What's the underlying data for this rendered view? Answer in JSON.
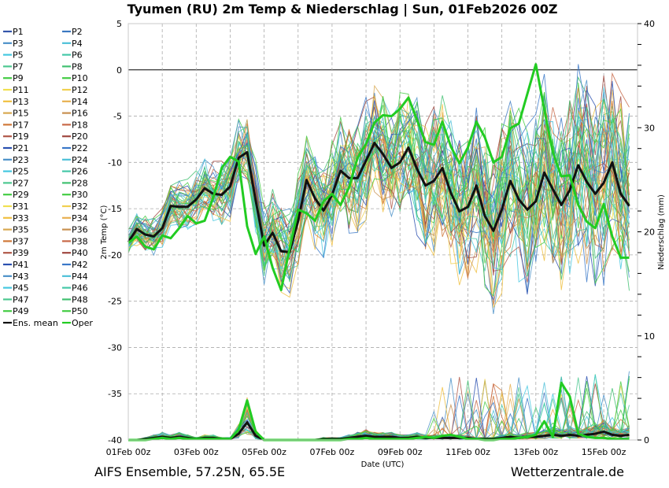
{
  "chart_data": {
    "type": "line",
    "title": "Tyumen  (RU)  2m Temp & Niederschlag | Sun, 01Feb2026 00Z",
    "xlabel": "Date (UTC)",
    "ylabel": "2m Temp (°C)",
    "y2label": "Niederschlag (mm)",
    "ylim": [
      -40,
      5
    ],
    "y2lim": [
      0,
      40
    ],
    "yticks": [
      5,
      0,
      -5,
      -10,
      -15,
      -20,
      -25,
      -30,
      -35,
      -40
    ],
    "y2ticks": [
      40,
      30,
      20,
      10,
      0
    ],
    "y2minor_step": 2,
    "x_start": "01Feb 00z",
    "x_step_hours": 6,
    "x_span_days": 15.0,
    "xticks": [
      {
        "label": "01Feb 00z",
        "day": 0
      },
      {
        "label": "03Feb 00z",
        "day": 2
      },
      {
        "label": "05Feb 00z",
        "day": 4
      },
      {
        "label": "07Feb 00z",
        "day": 6
      },
      {
        "label": "09Feb 00z",
        "day": 8
      },
      {
        "label": "11Feb 00z",
        "day": 10
      },
      {
        "label": "13Feb 00z",
        "day": 12
      },
      {
        "label": "15Feb 00z",
        "day": 14
      }
    ],
    "grid": true,
    "zero_line": true,
    "legend_position": "left-outside",
    "legend": [
      {
        "name": "P1",
        "color": "#3355aa"
      },
      {
        "name": "P2",
        "color": "#3a78c0"
      },
      {
        "name": "P3",
        "color": "#4a90c8"
      },
      {
        "name": "P4",
        "color": "#4cc0d8"
      },
      {
        "name": "P5",
        "color": "#45c8e0"
      },
      {
        "name": "P6",
        "color": "#45c8a8"
      },
      {
        "name": "P7",
        "color": "#4cc890"
      },
      {
        "name": "P8",
        "color": "#40c070"
      },
      {
        "name": "P9",
        "color": "#44cc44"
      },
      {
        "name": "P10",
        "color": "#44cc44"
      },
      {
        "name": "P11",
        "color": "#f0e050"
      },
      {
        "name": "P12",
        "color": "#f0d050"
      },
      {
        "name": "P13",
        "color": "#f0c040"
      },
      {
        "name": "P14",
        "color": "#e8b050"
      },
      {
        "name": "P15",
        "color": "#d8a850"
      },
      {
        "name": "P16",
        "color": "#c89050"
      },
      {
        "name": "P17",
        "color": "#d07838"
      },
      {
        "name": "P18",
        "color": "#c86848"
      },
      {
        "name": "P19",
        "color": "#b05848"
      },
      {
        "name": "P20",
        "color": "#a04840"
      },
      {
        "name": "P21",
        "color": "#2a50b0"
      },
      {
        "name": "P22",
        "color": "#3a78c8"
      },
      {
        "name": "P23",
        "color": "#4a90c8"
      },
      {
        "name": "P24",
        "color": "#4cc0d8"
      },
      {
        "name": "P25",
        "color": "#45c8e0"
      },
      {
        "name": "P26",
        "color": "#45c8a8"
      },
      {
        "name": "P27",
        "color": "#4cc890"
      },
      {
        "name": "P28",
        "color": "#40c070"
      },
      {
        "name": "P29",
        "color": "#44cc44"
      },
      {
        "name": "P30",
        "color": "#44cc44"
      },
      {
        "name": "P31",
        "color": "#f0e050"
      },
      {
        "name": "P32",
        "color": "#f0d050"
      },
      {
        "name": "P33",
        "color": "#f0c040"
      },
      {
        "name": "P34",
        "color": "#e8b050"
      },
      {
        "name": "P35",
        "color": "#d8a850"
      },
      {
        "name": "P36",
        "color": "#c89050"
      },
      {
        "name": "P37",
        "color": "#d07838"
      },
      {
        "name": "P38",
        "color": "#c86848"
      },
      {
        "name": "P39",
        "color": "#b05848"
      },
      {
        "name": "P40",
        "color": "#a04840"
      },
      {
        "name": "P41",
        "color": "#2a50b0"
      },
      {
        "name": "P42",
        "color": "#3a78c8"
      },
      {
        "name": "P43",
        "color": "#4a90c8"
      },
      {
        "name": "P44",
        "color": "#4cc0d8"
      },
      {
        "name": "P45",
        "color": "#45c8e0"
      },
      {
        "name": "P46",
        "color": "#45c8a8"
      },
      {
        "name": "P47",
        "color": "#4cc890"
      },
      {
        "name": "P48",
        "color": "#40c070"
      },
      {
        "name": "P49",
        "color": "#44cc44"
      },
      {
        "name": "P50",
        "color": "#44cc44"
      },
      {
        "name": "Ens. mean",
        "color": "#111111"
      },
      {
        "name": "Oper",
        "color": "#22cc22"
      }
    ],
    "series": [
      {
        "name": "Ens. mean",
        "axis": "temp",
        "color": "#111111",
        "values": [
          -18.6,
          -17.2,
          -17.8,
          -18.0,
          -17.1,
          -14.7,
          -14.8,
          -14.8,
          -14.0,
          -12.8,
          -13.4,
          -13.5,
          -12.6,
          -9.5,
          -8.9,
          -14.1,
          -19.0,
          -17.6,
          -19.6,
          -19.7,
          -16.3,
          -11.9,
          -13.9,
          -15.2,
          -13.5,
          -10.9,
          -11.7,
          -11.7,
          -9.8,
          -7.9,
          -9.1,
          -10.6,
          -10.0,
          -8.4,
          -10.7,
          -12.5,
          -12.0,
          -10.6,
          -13.3,
          -15.3,
          -14.8,
          -12.5,
          -15.8,
          -17.4,
          -15.1,
          -12.0,
          -14.0,
          -15.1,
          -14.2,
          -11.1,
          -12.9,
          -14.6,
          -13.0,
          -10.3,
          -12.1,
          -13.4,
          -12.2,
          -10.0,
          -13.4,
          -14.7
        ]
      },
      {
        "name": "Oper",
        "axis": "temp",
        "color": "#22cc22",
        "values": [
          -18.7,
          -18.0,
          -19.1,
          -19.4,
          -17.9,
          -18.2,
          -17.1,
          -15.8,
          -16.6,
          -16.3,
          -13.8,
          -10.6,
          -9.4,
          -9.9,
          -16.9,
          -19.9,
          -18.0,
          -21.4,
          -23.8,
          -19.3,
          -15.1,
          -15.5,
          -16.3,
          -14.2,
          -13.4,
          -14.6,
          -12.7,
          -9.5,
          -8.0,
          -5.7,
          -4.9,
          -5.0,
          -4.2,
          -3.0,
          -5.4,
          -7.8,
          -8.1,
          -5.6,
          -8.3,
          -10.1,
          -8.4,
          -5.6,
          -7.3,
          -10.0,
          -9.4,
          -6.3,
          -5.8,
          -2.6,
          0.6,
          -4.3,
          -8.9,
          -11.5,
          -11.4,
          -14.6,
          -16.4,
          -17.1,
          -14.5,
          -18.0,
          -20.3,
          -20.3
        ]
      },
      {
        "name": "Ens. mean precip",
        "axis": "precip",
        "color": "#111111",
        "values": [
          0,
          0,
          0.1,
          0.2,
          0.3,
          0.2,
          0.3,
          0.2,
          0.1,
          0.2,
          0.2,
          0.1,
          0.1,
          0.6,
          1.7,
          0.4,
          0,
          0,
          0,
          0,
          0,
          0,
          0,
          0.1,
          0.1,
          0.1,
          0.2,
          0.3,
          0.4,
          0.3,
          0.3,
          0.3,
          0.2,
          0.2,
          0.3,
          0.2,
          0.2,
          0.2,
          0.2,
          0.2,
          0.2,
          0.1,
          0.1,
          0.1,
          0.2,
          0.3,
          0.2,
          0.3,
          0.3,
          0.4,
          0.5,
          0.4,
          0.5,
          0.4,
          0.5,
          0.6,
          0.8,
          0.5,
          0.4,
          0.5
        ]
      },
      {
        "name": "Oper precip",
        "axis": "precip",
        "color": "#22cc22",
        "values": [
          0,
          0,
          0,
          0.1,
          0.2,
          0.1,
          0.2,
          0.1,
          0.1,
          0.1,
          0.1,
          0.1,
          0.1,
          1.0,
          3.8,
          0.8,
          0,
          0,
          0,
          0,
          0,
          0,
          0,
          0,
          0,
          0,
          0.1,
          0.1,
          0.2,
          0.1,
          0.1,
          0.1,
          0.1,
          0.1,
          0.2,
          0.3,
          0.2,
          0.4,
          0.5,
          0.3,
          0.1,
          0.1,
          0,
          0,
          0.1,
          0.1,
          0.2,
          0.3,
          0.5,
          1.8,
          0.3,
          5.5,
          4.2,
          0.6,
          0.3,
          0.2,
          0.2,
          0.1,
          0.1,
          0.1
        ]
      }
    ],
    "members_count": 50,
    "member_spread_note": "50 thin member traces scatter around the ensemble mean, spread widening from ~2°C early to ~10°C late"
  },
  "footer": {
    "left": "AIFS Ensemble, 57.25N, 65.5E",
    "right": "Wetterzentrale.de"
  }
}
